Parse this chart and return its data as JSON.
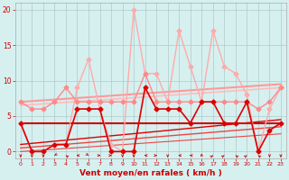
{
  "xlabel": "Vent moyen/en rafales ( km/h )",
  "xlabel_color": "#cc0000",
  "bg_color": "#d6f0f0",
  "grid_color": "#b0c8c8",
  "ylim": [
    -1,
    21
  ],
  "xlim": [
    -0.5,
    23.5
  ],
  "yticks": [
    0,
    5,
    10,
    15,
    20
  ],
  "x_ticks": [
    0,
    1,
    2,
    3,
    4,
    5,
    6,
    7,
    8,
    9,
    10,
    11,
    12,
    13,
    14,
    15,
    16,
    17,
    18,
    19,
    20,
    21,
    22,
    23
  ],
  "series_light_upper": {
    "x": [
      0,
      1,
      2,
      3,
      4,
      5,
      6,
      7,
      8,
      9,
      10,
      11,
      12,
      13,
      14,
      15,
      16,
      17,
      18,
      19,
      20,
      21,
      22,
      23
    ],
    "y": [
      4,
      0,
      0,
      1,
      1,
      9,
      13,
      6,
      1,
      0,
      20,
      11,
      11,
      7,
      17,
      12,
      7,
      17,
      12,
      11,
      8,
      0,
      6,
      9
    ],
    "color": "#ffaaaa",
    "lw": 1.0,
    "ms": 2.5
  },
  "series_light_mid": {
    "x": [
      0,
      1,
      2,
      3,
      4,
      5,
      6,
      7,
      8,
      9,
      10,
      11,
      12,
      13,
      14,
      15,
      16,
      17,
      18,
      19,
      20,
      21,
      22,
      23
    ],
    "y": [
      7,
      6,
      6,
      7,
      9,
      7,
      7,
      7,
      7,
      7,
      7,
      11,
      7,
      7,
      7,
      7,
      7,
      7,
      7,
      7,
      7,
      6,
      7,
      9
    ],
    "color": "#ff8888",
    "lw": 1.0,
    "ms": 2.5
  },
  "series_dark": {
    "x": [
      0,
      1,
      2,
      3,
      4,
      5,
      6,
      7,
      8,
      9,
      10,
      11,
      12,
      13,
      14,
      15,
      16,
      17,
      18,
      19,
      20,
      21,
      22,
      23
    ],
    "y": [
      4,
      0,
      0,
      1,
      1,
      6,
      6,
      6,
      0,
      0,
      0,
      9,
      6,
      6,
      6,
      4,
      7,
      7,
      4,
      4,
      7,
      0,
      3,
      4
    ],
    "color": "#dd0000",
    "lw": 1.2,
    "ms": 2.5
  },
  "trend_lines": [
    {
      "x": [
        0,
        23
      ],
      "y": [
        4.0,
        4.0
      ],
      "color": "#cc0000",
      "lw": 1.5
    },
    {
      "x": [
        0,
        23
      ],
      "y": [
        7.0,
        9.5
      ],
      "color": "#ff9999",
      "lw": 1.5
    },
    {
      "x": [
        0,
        23
      ],
      "y": [
        6.5,
        9.0
      ],
      "color": "#ffbbbb",
      "lw": 1.2
    },
    {
      "x": [
        0,
        23
      ],
      "y": [
        1.0,
        4.5
      ],
      "color": "#dd0000",
      "lw": 1.0
    },
    {
      "x": [
        0,
        23
      ],
      "y": [
        0.5,
        3.5
      ],
      "color": "#ee4444",
      "lw": 1.0
    },
    {
      "x": [
        0,
        23
      ],
      "y": [
        0.0,
        2.5
      ],
      "color": "#ee4444",
      "lw": 0.8
    }
  ],
  "wind_arrows": {
    "x": [
      0,
      1,
      2,
      3,
      4,
      5,
      6,
      7,
      8,
      9,
      10,
      11,
      12,
      13,
      14,
      15,
      16,
      17,
      18,
      19,
      20,
      21,
      22,
      23
    ],
    "angles": [
      180,
      180,
      180,
      225,
      315,
      270,
      135,
      90,
      90,
      180,
      180,
      270,
      90,
      180,
      270,
      270,
      0,
      45,
      45,
      315,
      45,
      315,
      180,
      180
    ]
  }
}
